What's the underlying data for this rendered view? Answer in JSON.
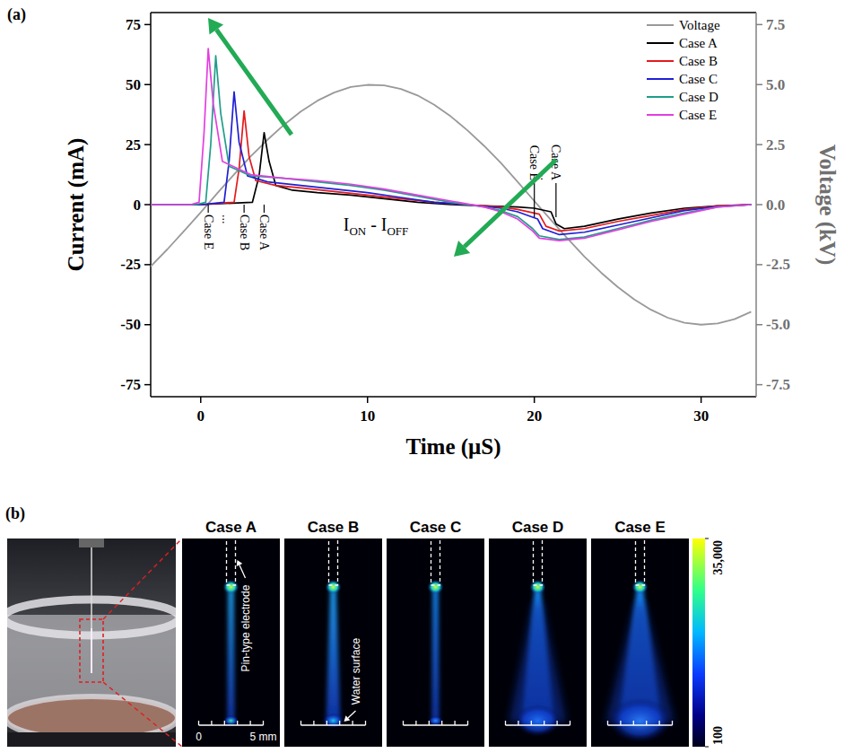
{
  "chart_data": {
    "type": "line",
    "panel_label": "(a)",
    "x_label": "Time (μS)",
    "y_label": "Current (mA)",
    "y2_label": "Voltage (kV)",
    "xlim": [
      -3,
      33.3
    ],
    "xticks": [
      0,
      10,
      20,
      30
    ],
    "ylim": [
      -80,
      80
    ],
    "yticks": [
      -75,
      -50,
      -25,
      0,
      25,
      50,
      75
    ],
    "y2lim": [
      -8,
      8
    ],
    "y2ticks": [
      -7.5,
      {
        "value": -5,
        "label": "-5.0"
      },
      -2.5,
      {
        "value": 0,
        "label": "0.0"
      },
      2.5,
      {
        "value": 5,
        "label": "5.0"
      },
      7.5
    ],
    "legend": "top-right",
    "series": [
      {
        "name": "Voltage",
        "color": "#999999",
        "axis": "y2",
        "x": [
          -3,
          -2,
          -1,
          0,
          1,
          2,
          3,
          4,
          5,
          6,
          7,
          8,
          9,
          10,
          11,
          12,
          13,
          14,
          15,
          16,
          17,
          18,
          19,
          20,
          21,
          22,
          23,
          24,
          25,
          26,
          27,
          28,
          29,
          30,
          31,
          32,
          33
        ],
        "values": [
          -2.57,
          -1.86,
          -1.1,
          -0.32,
          0.48,
          1.26,
          2.01,
          2.7,
          3.33,
          3.88,
          4.33,
          4.67,
          4.9,
          4.99,
          4.97,
          4.82,
          4.55,
          4.16,
          3.67,
          3.09,
          2.44,
          1.73,
          0.95,
          0.15,
          -0.64,
          -1.42,
          -2.16,
          -2.83,
          -3.43,
          -3.95,
          -4.38,
          -4.71,
          -4.92,
          -5.0,
          -4.95,
          -4.77,
          -4.46
        ]
      },
      {
        "name": "Case A",
        "color": "#000000",
        "x": [
          -3,
          0,
          3.1,
          3.5,
          3.8,
          4.1,
          4.5,
          5.5,
          7,
          9,
          11,
          13,
          15,
          17,
          19,
          20,
          21,
          21.3,
          21.8,
          23,
          25,
          27,
          29,
          31,
          33
        ],
        "values": [
          0,
          0,
          1,
          12,
          30,
          18,
          8,
          6,
          5,
          4,
          2.5,
          1,
          0,
          -0.5,
          -1,
          -1.5,
          -3,
          -8,
          -10,
          -9,
          -6,
          -3.5,
          -1.5,
          -0.5,
          0
        ]
      },
      {
        "name": "Case B",
        "color": "#e41a1c",
        "x": [
          -3,
          0,
          2.0,
          2.3,
          2.6,
          2.9,
          3.3,
          4.5,
          6,
          8,
          10,
          12,
          14,
          16,
          18,
          19,
          20.3,
          20.7,
          21.5,
          23,
          25,
          27,
          29,
          31,
          33
        ],
        "values": [
          0,
          0,
          1,
          15,
          39,
          20,
          10,
          8,
          7,
          5.5,
          4,
          2.5,
          1,
          0,
          -1,
          -2,
          -4,
          -9,
          -11,
          -10,
          -7,
          -4.5,
          -2,
          -0.5,
          0
        ]
      },
      {
        "name": "Case C",
        "color": "#1f1fd6",
        "x": [
          -3,
          0,
          1.4,
          1.7,
          2.0,
          2.3,
          2.8,
          4,
          6,
          8,
          10,
          12,
          14,
          16,
          18,
          19,
          20.2,
          20.5,
          21.5,
          23,
          25,
          27,
          29,
          31,
          33
        ],
        "values": [
          0,
          0,
          1,
          18,
          47,
          26,
          12,
          9.5,
          8,
          6.5,
          5,
          3,
          1,
          0,
          -1.5,
          -3,
          -6,
          -10,
          -12.5,
          -11.5,
          -8.5,
          -5.5,
          -2.5,
          -0.8,
          0
        ]
      },
      {
        "name": "Case D",
        "color": "#1f9e89",
        "x": [
          -3,
          -0.3,
          0.3,
          0.6,
          0.9,
          1.2,
          1.7,
          3,
          5,
          7,
          9,
          11,
          13,
          15,
          17,
          18,
          19,
          19.9,
          20.3,
          21.5,
          23,
          25,
          27,
          29,
          31,
          33
        ],
        "values": [
          0,
          0,
          1,
          25,
          62,
          38,
          16,
          12,
          11,
          9.5,
          8,
          6,
          3.5,
          1,
          -1,
          -2.5,
          -5,
          -10,
          -13,
          -14.5,
          -13.5,
          -10,
          -6.5,
          -3.5,
          -1,
          0
        ]
      },
      {
        "name": "Case E",
        "color": "#e23fe0",
        "x": [
          -3,
          -0.6,
          -0.1,
          0.2,
          0.45,
          0.75,
          1.3,
          3,
          5,
          7,
          9,
          11,
          13,
          15,
          17,
          18,
          19,
          19.9,
          20.3,
          21.5,
          23,
          25,
          27,
          29,
          31,
          33
        ],
        "values": [
          0,
          0,
          1,
          30,
          65,
          42,
          18,
          12.5,
          11,
          10,
          8.5,
          6.5,
          4,
          1.5,
          -1,
          -3,
          -6,
          -11,
          -14,
          -15,
          -14,
          -10.5,
          -7,
          -4,
          -1,
          0
        ]
      }
    ],
    "peak_markers": [
      {
        "text": "Case E",
        "x": 0.45
      },
      {
        "text": "Case B",
        "x": 2.6
      },
      {
        "text": "Case A",
        "x": 3.8
      }
    ],
    "dip_markers": [
      {
        "text": "Case E",
        "x": 20.0
      },
      {
        "text": "Case A",
        "x": 21.3
      }
    ],
    "marker_gap": "...",
    "annotations": [
      {
        "text": [
          "I",
          "ON",
          " - I",
          "OFF"
        ],
        "x": 10.5,
        "y": -8
      }
    ]
  },
  "panel_b": {
    "label": "(b)",
    "cases": [
      "Case A",
      "Case B",
      "Case C",
      "Case D",
      "Case E"
    ],
    "electrode_label": "Pin-type electrode",
    "water_label": "Water surface",
    "scale_bar": {
      "ticks": [
        0,
        1,
        2,
        3,
        4,
        5
      ],
      "labels": [
        {
          "value": 0,
          "label": "0"
        },
        {
          "value": 5,
          "label": "5 mm"
        }
      ]
    },
    "colorbar": {
      "range": [
        100,
        35000
      ],
      "ticks": [
        {
          "value": 35000,
          "label": "35,000"
        },
        100
      ]
    }
  }
}
